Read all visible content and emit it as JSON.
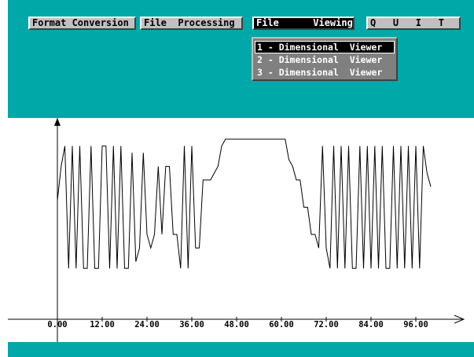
{
  "menu": {
    "items": [
      {
        "label": "Format Conversion",
        "active": false
      },
      {
        "label": "File  Processing",
        "active": false
      },
      {
        "label": "File      Viewing",
        "active": true
      },
      {
        "label": "Q   U   I   T",
        "active": false
      }
    ]
  },
  "dropdown": {
    "items": [
      {
        "label": "1 - Dimensional  Viewer",
        "selected": true
      },
      {
        "label": "2 - Dimensional  Viewer",
        "selected": false
      },
      {
        "label": "3 - Dimensional  Viewer",
        "selected": false
      }
    ]
  },
  "colors": {
    "background": "#00a8a8",
    "button_face": "#c0c0c0",
    "dropdown_face": "#808080",
    "plot_background": "#ffffff",
    "plot_line": "#000000"
  },
  "chart_data": {
    "type": "line",
    "title": "",
    "xlabel": "",
    "ylabel": "",
    "x_tick_labels": [
      "0.00",
      "12.00",
      "24.00",
      "36.00",
      "48.00",
      "60.00",
      "72.00",
      "84.00",
      "96.00"
    ],
    "x_ticks": [
      0,
      12,
      24,
      36,
      48,
      60,
      72,
      84,
      96
    ],
    "xlim": [
      0,
      100
    ],
    "ylim": [
      0,
      1
    ],
    "grid": false,
    "series": [
      {
        "x": [
          0,
          1,
          2,
          3,
          4,
          5,
          6,
          7,
          8,
          9,
          10,
          11,
          12,
          13,
          14,
          15,
          16,
          17,
          18,
          19,
          20,
          21,
          22,
          23,
          24,
          25,
          26,
          27,
          28,
          29,
          30,
          31,
          32,
          33,
          34,
          35,
          36,
          37,
          38,
          39,
          40,
          41,
          42,
          43,
          44,
          45,
          46,
          47,
          48,
          49,
          50,
          51,
          52,
          53,
          54,
          55,
          56,
          57,
          58,
          59,
          60,
          61,
          62,
          63,
          64,
          65,
          66,
          67,
          68,
          69,
          70,
          71,
          72,
          73,
          74,
          75,
          76,
          77,
          78,
          79,
          80,
          81,
          82,
          83,
          84,
          85,
          86,
          87,
          88,
          89,
          90,
          91,
          92,
          93,
          94,
          95,
          96,
          97,
          98,
          99,
          100
        ],
        "y": [
          0.55,
          0.8,
          0.95,
          0.05,
          0.95,
          0.05,
          0.95,
          0.05,
          0.05,
          0.95,
          0.05,
          0.05,
          0.95,
          0.95,
          0.05,
          0.95,
          0.05,
          0.95,
          0.05,
          0.05,
          0.9,
          0.1,
          0.2,
          0.9,
          0.3,
          0.2,
          0.3,
          0.8,
          0.3,
          0.8,
          0.8,
          0.3,
          0.3,
          0.05,
          0.95,
          0.05,
          0.95,
          0.2,
          0.2,
          0.7,
          0.7,
          0.7,
          0.75,
          0.8,
          0.95,
          1,
          1,
          1,
          1,
          1,
          1,
          1,
          1,
          1,
          1,
          1,
          1,
          1,
          1,
          1,
          1,
          1,
          0.85,
          0.8,
          0.7,
          0.7,
          0.5,
          0.5,
          0.3,
          0.3,
          0.2,
          0.95,
          0.2,
          0.05,
          0.95,
          0.05,
          0.95,
          0.05,
          0.95,
          0.05,
          0.05,
          0.95,
          0.05,
          0.95,
          0.05,
          0.95,
          0.05,
          0.95,
          0.05,
          0.05,
          0.95,
          0.05,
          0.95,
          0.05,
          0.95,
          0.05,
          0.95,
          0.05,
          0.95,
          0.75,
          0.65
        ]
      }
    ]
  }
}
